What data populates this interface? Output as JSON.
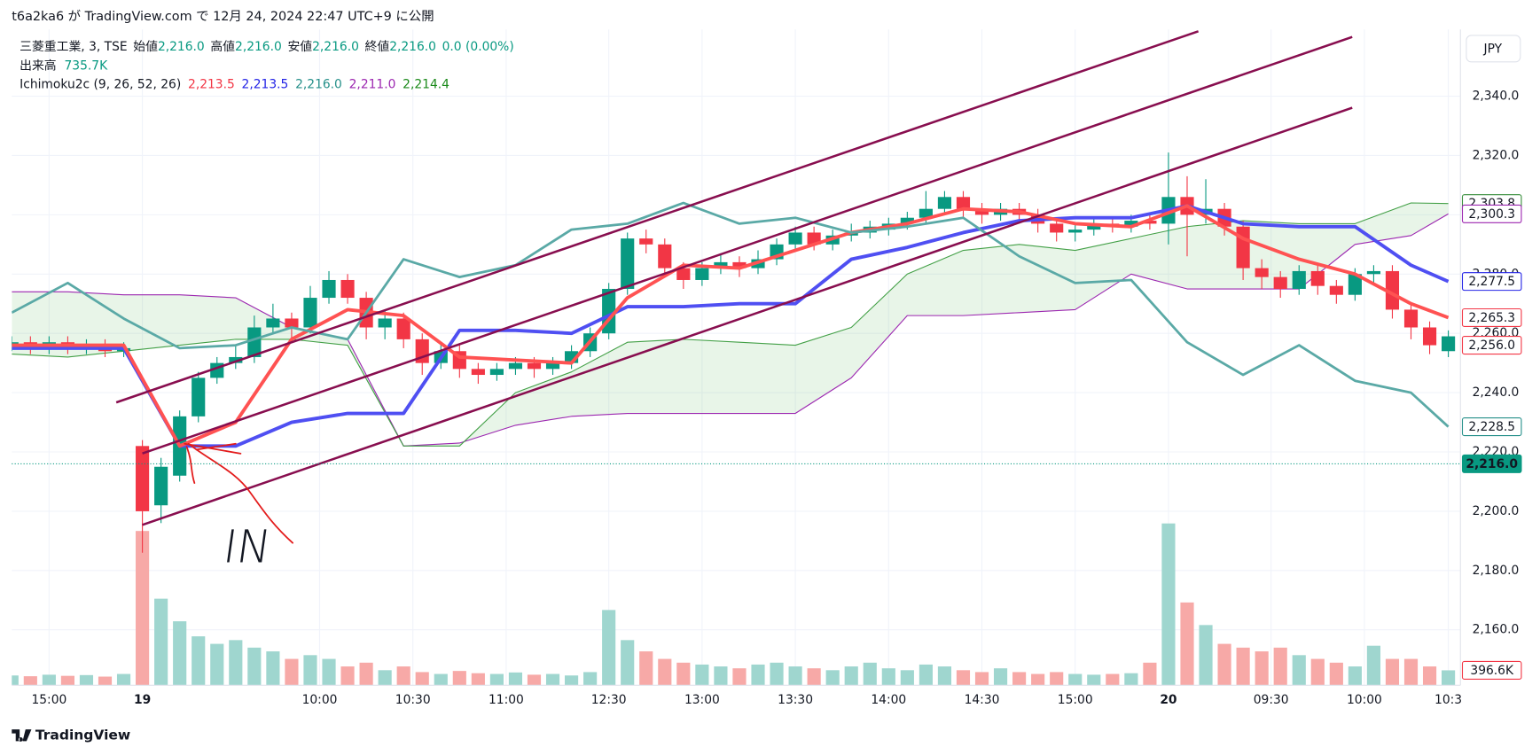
{
  "header": {
    "publish": "t6a2ka6 が TradingView.com で 12月 24, 2024 22:47 UTC+9 に公開",
    "symbol": "三菱重工業, 3, TSE",
    "ohlc": [
      {
        "label": "始値",
        "value": "2,216.0"
      },
      {
        "label": "高値",
        "value": "2,216.0"
      },
      {
        "label": "安値",
        "value": "2,216.0"
      },
      {
        "label": "終値",
        "value": "2,216.0"
      }
    ],
    "change": "0.0 (0.00%)",
    "volume_label": "出来高",
    "volume_value": "735.7K",
    "indicator": "Ichimoku2c (9, 26, 52, 26)",
    "indicator_values": [
      {
        "text": "2,213.5",
        "color": "#f23645"
      },
      {
        "text": "2,213.5",
        "color": "#2424e6"
      },
      {
        "text": "2,216.0",
        "color": "#26908a"
      },
      {
        "text": "2,211.0",
        "color": "#9c27b0"
      },
      {
        "text": "2,214.4",
        "color": "#1b8a1b"
      }
    ],
    "currency": "JPY",
    "brand": "TradingView"
  },
  "chart_data": {
    "type": "candlestick",
    "xlim": [
      0,
      155.3
    ],
    "ylim": [
      2141.3,
      2362.5
    ],
    "xticks": [
      {
        "value": 4,
        "label": "15:00"
      },
      {
        "value": 14,
        "label": "19",
        "bold": true
      },
      {
        "value": 33,
        "label": "10:00"
      },
      {
        "value": 43,
        "label": "10:30"
      },
      {
        "value": 53,
        "label": "11:00"
      },
      {
        "value": 64,
        "label": "12:30"
      },
      {
        "value": 74,
        "label": "13:00"
      },
      {
        "value": 84,
        "label": "13:30"
      },
      {
        "value": 94,
        "label": "14:00"
      },
      {
        "value": 104,
        "label": "14:30"
      },
      {
        "value": 114,
        "label": "15:00"
      },
      {
        "value": 124,
        "label": "20",
        "bold": true
      },
      {
        "value": 135,
        "label": "09:30"
      },
      {
        "value": 145,
        "label": "10:00"
      },
      {
        "value": 154,
        "label": "10:3"
      }
    ],
    "yticks": [
      {
        "value": 2160,
        "label": "2,160.0"
      },
      {
        "value": 2180,
        "label": "2,180.0"
      },
      {
        "value": 2200,
        "label": "2,200.0"
      },
      {
        "value": 2220,
        "label": "2,220.0"
      },
      {
        "value": 2240,
        "label": "2,240.0"
      },
      {
        "value": 2260,
        "label": "2,260.0"
      },
      {
        "value": 2280,
        "label": "2,280.0"
      },
      {
        "value": 2300,
        "label": "2,300.0"
      },
      {
        "value": 2320,
        "label": "2,320.0"
      },
      {
        "value": 2340,
        "label": "2,340.0"
      }
    ],
    "grid": true,
    "colors": {
      "up": "#089981",
      "down": "#f23645",
      "volume_up": "#9fd6cf",
      "volume_down": "#f7a9a7"
    },
    "candles": {
      "x": [
        0,
        2,
        4,
        6,
        8,
        10,
        12,
        14,
        16,
        18,
        20,
        22,
        24,
        26,
        28,
        30,
        32,
        34,
        36,
        38,
        40,
        42,
        44,
        46,
        48,
        50,
        52,
        54,
        56,
        58,
        60,
        62,
        64,
        66,
        68,
        70,
        72,
        74,
        76,
        78,
        80,
        82,
        84,
        86,
        88,
        90,
        92,
        94,
        96,
        98,
        100,
        102,
        104,
        106,
        108,
        110,
        112,
        114,
        116,
        118,
        120,
        122,
        124,
        126,
        128,
        130,
        132,
        134,
        136,
        138,
        140,
        142,
        144,
        146,
        148,
        150,
        152,
        154
      ],
      "open": [
        2256,
        2257,
        2255,
        2257,
        2255,
        2256,
        2254,
        2222,
        2202,
        2212,
        2232,
        2245,
        2250,
        2252,
        2262,
        2265,
        2262,
        2272,
        2278,
        2272,
        2262,
        2265,
        2258,
        2250,
        2254,
        2248,
        2246,
        2248,
        2250,
        2248,
        2250,
        2254,
        2260,
        2275,
        2292,
        2290,
        2282,
        2278,
        2282,
        2284,
        2282,
        2285,
        2290,
        2294,
        2290,
        2293,
        2294,
        2295,
        2297,
        2299,
        2302,
        2306,
        2302,
        2300,
        2302,
        2300,
        2297,
        2294,
        2295,
        2297,
        2296,
        2298,
        2297,
        2306,
        2300,
        2302,
        2296,
        2282,
        2279,
        2275,
        2281,
        2276,
        2273,
        2280,
        2281,
        2268,
        2262,
        2254
      ],
      "high": [
        2259,
        2259,
        2259,
        2259,
        2258,
        2258,
        2257,
        2224,
        2218,
        2234,
        2247,
        2252,
        2256,
        2266,
        2270,
        2267,
        2276,
        2281,
        2280,
        2274,
        2268,
        2267,
        2260,
        2257,
        2256,
        2250,
        2250,
        2252,
        2252,
        2252,
        2256,
        2262,
        2277,
        2294,
        2295,
        2292,
        2284,
        2284,
        2287,
        2286,
        2288,
        2292,
        2296,
        2296,
        2295,
        2297,
        2298,
        2299,
        2301,
        2308,
        2308,
        2308,
        2304,
        2304,
        2304,
        2302,
        2299,
        2297,
        2299,
        2299,
        2300,
        2300,
        2321,
        2313,
        2312,
        2304,
        2298,
        2285,
        2281,
        2283,
        2283,
        2278,
        2282,
        2283,
        2283,
        2270,
        2264,
        2261
      ],
      "low": [
        2254,
        2253,
        2253,
        2253,
        2253,
        2252,
        2252,
        2186,
        2196,
        2210,
        2230,
        2243,
        2248,
        2250,
        2260,
        2258,
        2260,
        2270,
        2270,
        2258,
        2258,
        2255,
        2246,
        2248,
        2245,
        2243,
        2244,
        2246,
        2245,
        2246,
        2248,
        2252,
        2258,
        2273,
        2287,
        2279,
        2275,
        2276,
        2280,
        2279,
        2280,
        2283,
        2288,
        2288,
        2288,
        2291,
        2292,
        2293,
        2295,
        2297,
        2300,
        2299,
        2297,
        2298,
        2297,
        2294,
        2291,
        2291,
        2293,
        2294,
        2294,
        2295,
        2290,
        2286,
        2297,
        2293,
        2278,
        2275,
        2272,
        2273,
        2273,
        2270,
        2271,
        2277,
        2265,
        2258,
        2253,
        2252
      ],
      "close": [
        2257,
        2255,
        2257,
        2255,
        2256,
        2254,
        2255,
        2200,
        2215,
        2232,
        2245,
        2250,
        2252,
        2262,
        2265,
        2262,
        2272,
        2278,
        2272,
        2262,
        2265,
        2258,
        2250,
        2254,
        2248,
        2246,
        2248,
        2250,
        2248,
        2250,
        2254,
        2260,
        2275,
        2292,
        2290,
        2282,
        2278,
        2282,
        2284,
        2282,
        2285,
        2290,
        2294,
        2290,
        2293,
        2294,
        2296,
        2297,
        2299,
        2302,
        2306,
        2302,
        2300,
        2302,
        2300,
        2297,
        2294,
        2295,
        2297,
        2296,
        2298,
        2297,
        2306,
        2300,
        2302,
        2296,
        2282,
        2279,
        2275,
        2281,
        2276,
        2273,
        2280,
        2281,
        2268,
        2262,
        2256,
        2259
      ]
    },
    "volume": {
      "lim": [
        0,
        6000000
      ],
      "values": [
        260000,
        240000,
        280000,
        250000,
        270000,
        230000,
        300000,
        4100000,
        2300000,
        1700000,
        1300000,
        1100000,
        1200000,
        1000000,
        900000,
        700000,
        800000,
        700000,
        500000,
        600000,
        400000,
        500000,
        350000,
        300000,
        380000,
        320000,
        300000,
        340000,
        280000,
        300000,
        260000,
        350000,
        2000000,
        1200000,
        900000,
        700000,
        600000,
        550000,
        500000,
        450000,
        550000,
        600000,
        500000,
        450000,
        400000,
        500000,
        600000,
        450000,
        400000,
        550000,
        500000,
        400000,
        350000,
        450000,
        350000,
        300000,
        350000,
        300000,
        280000,
        300000,
        320000,
        600000,
        4300000,
        2200000,
        1600000,
        1100000,
        1000000,
        900000,
        1000000,
        800000,
        700000,
        600000,
        500000,
        1050000,
        700000,
        700000,
        500000,
        396600
      ],
      "last": {
        "value": 396600,
        "label": "396.6K",
        "color": "#f23645"
      }
    },
    "line_x": [
      0,
      6,
      12,
      18,
      24,
      30,
      36,
      42,
      48,
      54,
      60,
      66,
      72,
      78,
      84,
      90,
      96,
      102,
      108,
      114,
      120,
      126,
      132,
      138,
      144,
      150,
      154
    ],
    "cloud_color": "rgba(76,175,80,0.13)",
    "lines": {
      "span_b": {
        "color": "#9c27b0",
        "width": 1,
        "values": [
          2274,
          2274,
          2273,
          2273,
          2272,
          2262,
          2258,
          2222,
          2223,
          2229,
          2232,
          2233,
          2233,
          2233,
          2233,
          2245,
          2266,
          2266,
          2267,
          2268,
          2280,
          2275,
          2275,
          2275,
          2290,
          2293,
          2300.3
        ]
      },
      "span_a": {
        "color": "#43a047",
        "width": 1,
        "values": [
          2253,
          2252,
          2254,
          2256,
          2258,
          2258,
          2256,
          2222,
          2222,
          2240,
          2247,
          2257,
          2258,
          2257,
          2256,
          2262,
          2280,
          2288,
          2290,
          2288,
          2292,
          2296,
          2298,
          2297,
          2297,
          2304,
          2303.8
        ]
      },
      "base": {
        "color": "#4f4ff2",
        "width": 3.5,
        "values": [
          2255,
          2255,
          2255,
          2222,
          2222,
          2230,
          2233,
          2233,
          2261,
          2261,
          2260,
          2269,
          2269,
          2270,
          2270,
          2285,
          2289,
          2294,
          2298,
          2299,
          2299,
          2303,
          2297,
          2296,
          2296,
          2283,
          2277.5
        ]
      },
      "conversion": {
        "color": "#ff5252",
        "width": 3.5,
        "values": [
          2256,
          2256,
          2256,
          2222,
          2230,
          2258,
          2268,
          2266,
          2252,
          2251,
          2250,
          2272,
          2283,
          2282,
          2288,
          2294,
          2297,
          2302,
          2301,
          2297,
          2296,
          2303,
          2292,
          2285,
          2280,
          2270,
          2265.3
        ]
      },
      "lagging": {
        "color": "#5aa9a6",
        "width": 2.5,
        "values": [
          2267,
          2277,
          2265,
          2255,
          2256,
          2262,
          2258,
          2285,
          2279,
          2283,
          2295,
          2297,
          2304,
          2297,
          2299,
          2294,
          2296,
          2299,
          2286,
          2277,
          2278,
          2257,
          2246,
          2256,
          2244,
          2240,
          2228.5
        ]
      }
    },
    "drawing_color": "#880e4f",
    "drawings": [
      {
        "x": [
          11.2,
          127.2
        ],
        "y": [
          2236.7,
          2361.9
        ]
      },
      {
        "x": [
          14,
          143.7
        ],
        "y": [
          2219.5,
          2360
        ]
      },
      {
        "x": [
          14,
          143.7
        ],
        "y": [
          2195.4,
          2336.1
        ]
      }
    ],
    "price_labels": [
      {
        "value": 2303.8,
        "label": "2,303.8",
        "color": "#388e3c"
      },
      {
        "value": 2300.3,
        "label": "2,300.3",
        "color": "#9c27b0"
      },
      {
        "value": 2277.5,
        "label": "2,277.5",
        "color": "#2424e6"
      },
      {
        "value": 2265.3,
        "label": "2,265.3",
        "color": "#f23645"
      },
      {
        "value": 2256.0,
        "label": "2,256.0",
        "color": "#f23645"
      },
      {
        "value": 2228.5,
        "label": "2,228.5",
        "color": "#26908a"
      },
      {
        "value": 2216.0,
        "label": "2,216.0",
        "color": "#089981",
        "filled": true
      }
    ],
    "annotation": {
      "text": "IN",
      "color": "#e31b1b"
    }
  }
}
